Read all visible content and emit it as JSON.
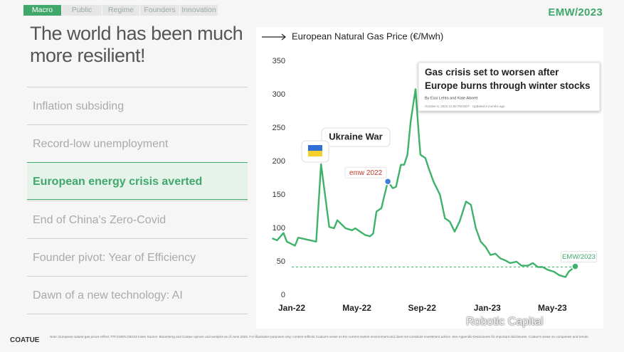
{
  "nav": {
    "tabs": [
      "Macro",
      "Public",
      "Regime",
      "Founders",
      "Innovation"
    ],
    "active": 0
  },
  "brand": "EMW/2023",
  "title": "The world has been much more resilient!",
  "items": [
    "Inflation subsiding",
    "Record-low unemployment",
    "European energy crisis averted",
    "End of China's Zero-Covid",
    "Founder pivot: Year of Efficiency",
    "Dawn of a new technology: AI"
  ],
  "active_item": 2,
  "footer": {
    "logo": "COATUE",
    "disclaimer": "Note: European natural gas prices reflect TTF/1MON OECM Index Source: Bloomberg and Coatue opinion and analysis as of June 2023. For illustrative purposes only; content reflects Coatue's views on the current market environment and does not constitute investment advice. See Appendix-Disclosures for important disclosures. Coatue's views on companies and trends.",
    "watermark": "Robotic Capital"
  },
  "chart_data": {
    "type": "line",
    "title": "European Natural Gas Price (€/Mwh)",
    "x": [
      -1.2,
      -0.9,
      -0.5,
      -0.3,
      0.2,
      0.4,
      1.5,
      1.8,
      2.3,
      2.6,
      2.8,
      3.3,
      3.7,
      3.9,
      4.2,
      4.5,
      4.8,
      5.0,
      5.2,
      5.5,
      5.7,
      5.9,
      6.2,
      6.4,
      6.7,
      6.9,
      7.1,
      7.3,
      7.6,
      7.8,
      7.9,
      8.2,
      8.4,
      8.7,
      9.1,
      9.4,
      9.7,
      10.0,
      10.3,
      10.7,
      11.0,
      11.3,
      11.6,
      11.9,
      12.2,
      12.5,
      12.8,
      13.1,
      13.4,
      13.8,
      14.1,
      14.5,
      14.8,
      15.1,
      15.4,
      15.7,
      16.1,
      16.4,
      16.8,
      17.0,
      17.4
    ],
    "series": [
      {
        "name": "European Natural Gas Price",
        "color": "#3fb26a",
        "values": [
          85,
          82,
          93,
          80,
          74,
          86,
          80,
          196,
          102,
          100,
          112,
          100,
          97,
          100,
          95,
          90,
          88,
          92,
          125,
          130,
          150,
          170,
          160,
          162,
          195,
          195,
          210,
          260,
          308,
          240,
          210,
          205,
          190,
          170,
          150,
          115,
          110,
          95,
          110,
          140,
          135,
          100,
          80,
          72,
          60,
          62,
          55,
          52,
          48,
          50,
          44,
          44,
          48,
          42,
          42,
          38,
          35,
          30,
          27,
          35,
          43
        ]
      }
    ],
    "xlim": [
      -1.5,
      18
    ],
    "xticks": [
      {
        "value": 0,
        "label": "Jan-22"
      },
      {
        "value": 4,
        "label": "May-22"
      },
      {
        "value": 8,
        "label": "Sep-22"
      },
      {
        "value": 12,
        "label": "Jan-23"
      },
      {
        "value": 16,
        "label": "May-23"
      }
    ],
    "ylim": [
      0,
      350
    ],
    "yticks": [
      0,
      50,
      100,
      150,
      200,
      250,
      300,
      350
    ],
    "grid": false,
    "reference_line": {
      "value": 42,
      "color": "#3fb26a"
    },
    "markers": [
      {
        "label": "emw 2022",
        "x": 5.9,
        "y": 170,
        "color": "#3b7dd8"
      },
      {
        "label": "EMW/2023",
        "x": 17.4,
        "y": 43,
        "color": "#3fb26a"
      }
    ],
    "annotation": "Ukraine War",
    "news": {
      "headline": "Gas crisis set to worsen after Europe burns through winter stocks",
      "byline": "By Essi Lehto and Kate Abnett",
      "date": "October 5, 2022 12:56 PM EDT · Updated 8 months ago"
    }
  }
}
